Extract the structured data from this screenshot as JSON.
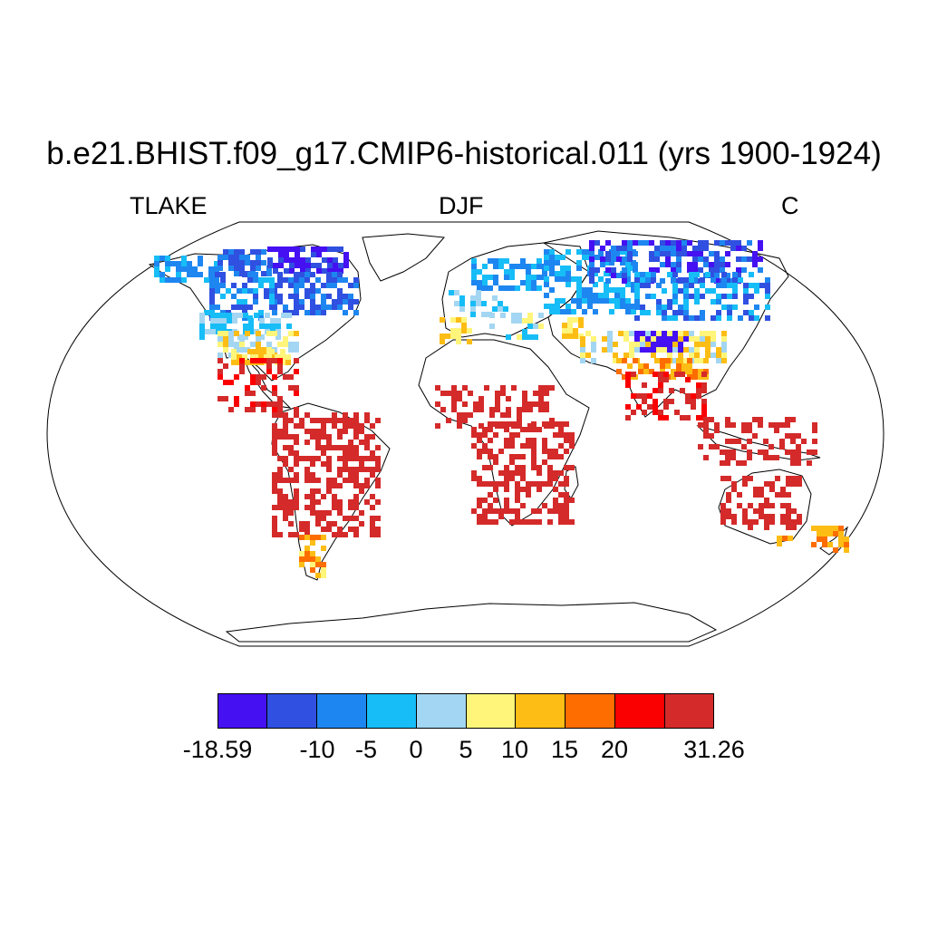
{
  "title": "b.e21.BHIST.f09_g17.CMIP6-historical.011 (yrs 1900-1924)",
  "left_label": "TLAKE",
  "center_label": "DJF",
  "right_label": "C",
  "colorbar": {
    "colors": [
      "#4510f2",
      "#2f50e0",
      "#1e86f0",
      "#16bdf7",
      "#a3d6f2",
      "#fff57a",
      "#fdbd14",
      "#fd6d00",
      "#fb0000",
      "#d42a2a"
    ],
    "tick_labels": [
      "-18.59",
      "-10",
      "-5",
      "0",
      "5",
      "10",
      "15",
      "20",
      "31.26"
    ]
  }
}
